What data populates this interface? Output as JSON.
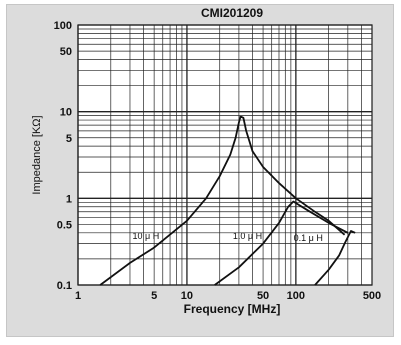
{
  "chart_data": {
    "type": "line",
    "title": "CMI201209",
    "xlabel": "Frequency [MHz]",
    "ylabel": "Impedance [KΩ]",
    "xscale": "log",
    "yscale": "log",
    "xlim": [
      1,
      500
    ],
    "ylim": [
      0.1,
      100
    ],
    "x_ticks": [
      1,
      5,
      10,
      50,
      100,
      500
    ],
    "x_tick_labels": [
      "1",
      "5",
      "10",
      "50",
      "100",
      "500"
    ],
    "y_ticks": [
      0.1,
      0.5,
      1,
      5,
      10,
      50,
      100
    ],
    "y_tick_labels": [
      "0.1",
      "0.5",
      "1",
      "5",
      "10",
      "50",
      "100"
    ],
    "grid": true,
    "series": [
      {
        "name": "10 μ H",
        "points": [
          [
            1.6,
            0.1
          ],
          [
            3,
            0.18
          ],
          [
            5,
            0.27
          ],
          [
            10,
            0.55
          ],
          [
            15,
            1.0
          ],
          [
            20,
            1.8
          ],
          [
            25,
            3.2
          ],
          [
            28,
            5.0
          ],
          [
            30,
            7.5
          ],
          [
            31,
            8.8
          ],
          [
            33,
            8.5
          ],
          [
            35,
            6.0
          ],
          [
            40,
            3.5
          ],
          [
            50,
            2.3
          ],
          [
            70,
            1.5
          ],
          [
            100,
            1.0
          ],
          [
            150,
            0.7
          ],
          [
            200,
            0.55
          ],
          [
            280,
            0.38
          ]
        ]
      },
      {
        "name": "1.0 μ H",
        "points": [
          [
            18,
            0.1
          ],
          [
            30,
            0.16
          ],
          [
            50,
            0.3
          ],
          [
            70,
            0.52
          ],
          [
            85,
            0.8
          ],
          [
            95,
            0.92
          ],
          [
            105,
            0.85
          ],
          [
            130,
            0.72
          ],
          [
            200,
            0.52
          ],
          [
            300,
            0.4
          ]
        ]
      },
      {
        "name": "0.1 μ H",
        "points": [
          [
            150,
            0.1
          ],
          [
            200,
            0.15
          ],
          [
            250,
            0.22
          ],
          [
            280,
            0.3
          ],
          [
            320,
            0.42
          ],
          [
            350,
            0.4
          ]
        ]
      }
    ],
    "annotations": [
      "10 μ H",
      "1.0 μ H",
      "0.1 μ H"
    ]
  }
}
